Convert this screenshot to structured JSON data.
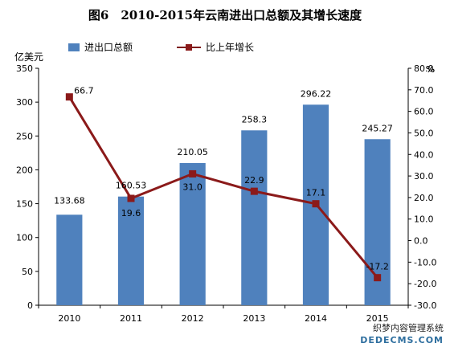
{
  "chart_data": {
    "type": "bar",
    "title": "图6　2010-2015年云南进出口总额及其增长速度",
    "categories": [
      "2010",
      "2011",
      "2012",
      "2013",
      "2014",
      "2015"
    ],
    "series": [
      {
        "name": "进出口总额",
        "type": "bar",
        "axis": "left",
        "values": [
          133.68,
          160.53,
          210.05,
          258.3,
          296.22,
          245.27
        ],
        "labels": [
          "133.68",
          "160.53",
          "210.05",
          "258.3",
          "296.22",
          "245.27"
        ],
        "color": "#4f81bd"
      },
      {
        "name": "比上年增长",
        "type": "line",
        "axis": "right",
        "values": [
          66.7,
          19.6,
          31.0,
          22.9,
          17.1,
          -17.2
        ],
        "labels": [
          "66.7",
          "19.6",
          "31.0",
          "22.9",
          "17.1",
          "-17.2"
        ],
        "color": "#8b1a1a"
      }
    ],
    "ylabel": "亿美元",
    "ylabel_right": "%",
    "ylim": [
      0,
      350
    ],
    "ylim_right": [
      -30,
      80
    ],
    "yticks": [
      "0",
      "50",
      "100",
      "150",
      "200",
      "250",
      "300",
      "350"
    ],
    "yticks_right": [
      "-30.0",
      "-20.0",
      "-10.0",
      "0.0",
      "10.0",
      "20.0",
      "30.0",
      "40.0",
      "50.0",
      "60.0",
      "70.0",
      "80.0"
    ],
    "legend_position": "top-left",
    "grid": false
  },
  "watermark": {
    "line1": "织梦内容管理系统",
    "line2": "DEDECMS.COM"
  }
}
